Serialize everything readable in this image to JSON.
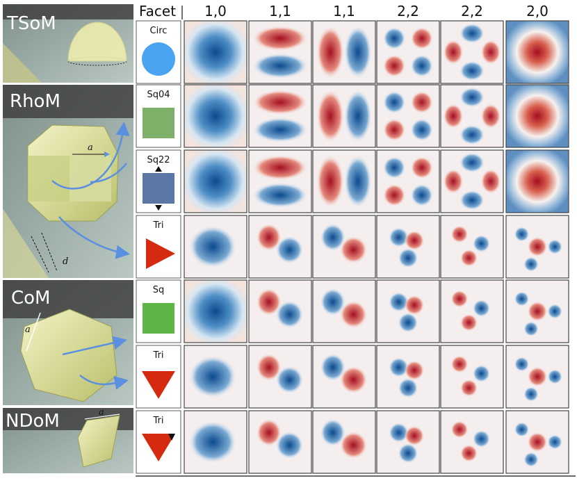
{
  "header": {
    "facet_label": "Facet",
    "columns": [
      "1,0",
      "1,1",
      "1,1",
      "2,2",
      "2,2",
      "2,0"
    ]
  },
  "groups": [
    {
      "label": "TSoM",
      "dims": []
    },
    {
      "label": "RhoM",
      "dims": [
        "a",
        "d"
      ]
    },
    {
      "label": "CoM",
      "dims": [
        "a"
      ]
    },
    {
      "label": "NDoM",
      "dims": [
        "a"
      ]
    }
  ],
  "rows": [
    {
      "facet": "Circ",
      "shape": "circle",
      "color": "#4aa3f0"
    },
    {
      "facet": "Sq04",
      "shape": "square",
      "color": "#7fb06a"
    },
    {
      "facet": "Sq22",
      "shape": "square-rotated",
      "color": "#5b77a6"
    },
    {
      "facet": "Tri",
      "shape": "triangle-right",
      "color": "#d62a10"
    },
    {
      "facet": "Sq",
      "shape": "square",
      "color": "#5cb544"
    },
    {
      "facet": "Tri",
      "shape": "triangle-down",
      "color": "#d62a10"
    },
    {
      "facet": "Tri",
      "shape": "triangle-down-notch",
      "color": "#d62a10"
    }
  ],
  "colors": {
    "positive": "#b2182b",
    "negative": "#2166ac",
    "neutral": "#f7f7f7"
  }
}
